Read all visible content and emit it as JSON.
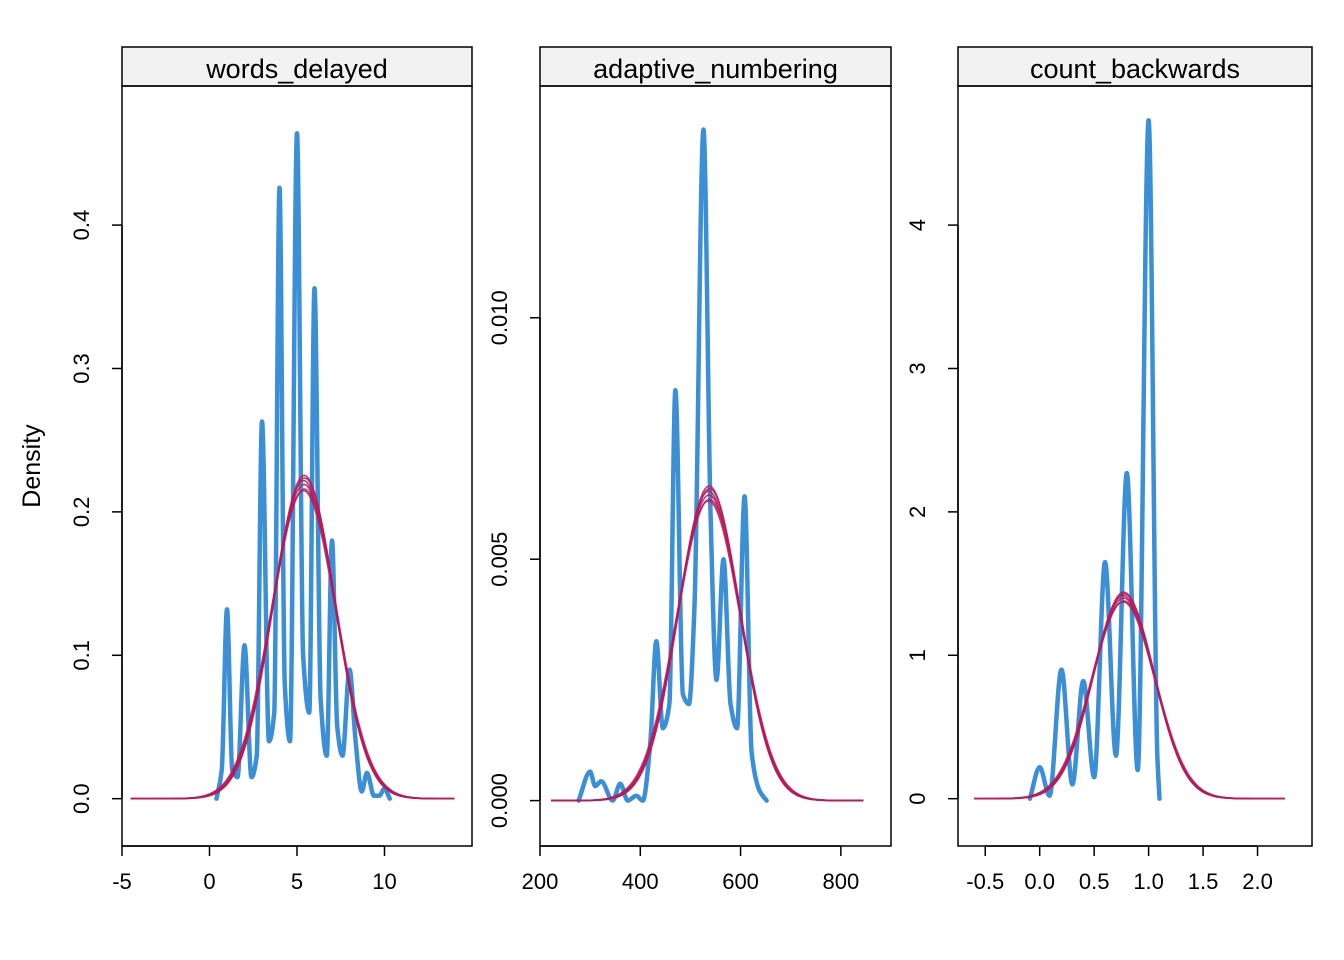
{
  "ylabel": "Density",
  "colors": {
    "observed": "#3a8fd6",
    "simulated": "#b8195a",
    "strip": "#f2f2f2"
  },
  "chart_data": [
    {
      "type": "line",
      "title": "words_delayed",
      "xlabel": "",
      "ylabel": "Density",
      "xlim": [
        -5,
        15
      ],
      "ylim": [
        -0.033,
        0.497
      ],
      "xticks": [
        -5,
        0,
        5,
        10
      ],
      "xtick_labels": [
        "-5",
        "0",
        "5",
        "10"
      ],
      "yticks": [
        0.0,
        0.1,
        0.2,
        0.3,
        0.4
      ],
      "ytick_labels": [
        "0.0",
        "0.1",
        "0.2",
        "0.3",
        "0.4"
      ],
      "grid": false,
      "series": [
        {
          "role": "observed",
          "points": [
            [
              0.4,
              0.0
            ],
            [
              0.7,
              0.02
            ],
            [
              1.0,
              0.132
            ],
            [
              1.3,
              0.02
            ],
            [
              1.6,
              0.015
            ],
            [
              2.0,
              0.107
            ],
            [
              2.4,
              0.015
            ],
            [
              2.7,
              0.03
            ],
            [
              3.0,
              0.263
            ],
            [
              3.4,
              0.04
            ],
            [
              3.7,
              0.06
            ],
            [
              4.0,
              0.426
            ],
            [
              4.3,
              0.08
            ],
            [
              4.6,
              0.04
            ],
            [
              5.0,
              0.464
            ],
            [
              5.35,
              0.1
            ],
            [
              5.7,
              0.06
            ],
            [
              6.0,
              0.356
            ],
            [
              6.35,
              0.07
            ],
            [
              6.7,
              0.03
            ],
            [
              7.0,
              0.18
            ],
            [
              7.3,
              0.05
            ],
            [
              7.6,
              0.03
            ],
            [
              8.0,
              0.09
            ],
            [
              8.35,
              0.04
            ],
            [
              8.7,
              0.005
            ],
            [
              9.0,
              0.018
            ],
            [
              9.4,
              0.002
            ],
            [
              9.7,
              0.002
            ],
            [
              10.0,
              0.007
            ],
            [
              10.3,
              0.0
            ]
          ]
        },
        {
          "role": "simulated",
          "mean": 5.4,
          "sd": 1.82,
          "replicates": 6,
          "x_range": [
            -4.5,
            14
          ]
        }
      ]
    },
    {
      "type": "line",
      "title": "adaptive_numbering",
      "xlabel": "",
      "ylabel": "Density",
      "xlim": [
        200,
        900
      ],
      "ylim": [
        -0.00094,
        0.0148
      ],
      "xticks": [
        200,
        400,
        600,
        800
      ],
      "xtick_labels": [
        "200",
        "400",
        "600",
        "800"
      ],
      "yticks": [
        0.0,
        0.005,
        0.01
      ],
      "ytick_labels": [
        "0.000",
        "0.005",
        "0.010"
      ],
      "grid": false,
      "series": [
        {
          "role": "observed",
          "points": [
            [
              277,
              0.0
            ],
            [
              300,
              0.0006
            ],
            [
              310,
              0.0003
            ],
            [
              322,
              0.0004
            ],
            [
              345,
              0.0
            ],
            [
              360,
              0.00035
            ],
            [
              375,
              0.0
            ],
            [
              392,
              0.0001
            ],
            [
              405,
              0.0
            ],
            [
              420,
              0.0012
            ],
            [
              432,
              0.0033
            ],
            [
              445,
              0.0015
            ],
            [
              458,
              0.002
            ],
            [
              470,
              0.0085
            ],
            [
              485,
              0.0022
            ],
            [
              497,
              0.002
            ],
            [
              508,
              0.004
            ],
            [
              526,
              0.0139
            ],
            [
              540,
              0.006
            ],
            [
              552,
              0.0025
            ],
            [
              566,
              0.005
            ],
            [
              580,
              0.002
            ],
            [
              593,
              0.0015
            ],
            [
              608,
              0.0063
            ],
            [
              622,
              0.001
            ],
            [
              638,
              0.0002
            ],
            [
              652,
              0.0
            ]
          ]
        },
        {
          "role": "simulated",
          "mean": 537,
          "sd": 63,
          "replicates": 6,
          "x_range": [
            222,
            845
          ]
        }
      ]
    },
    {
      "type": "line",
      "title": "count_backwards",
      "xlabel": "",
      "ylabel": "Density",
      "xlim": [
        -0.75,
        2.5
      ],
      "ylim": [
        -0.33,
        4.97
      ],
      "xticks": [
        -0.5,
        0.0,
        0.5,
        1.0,
        1.5,
        2.0
      ],
      "xtick_labels": [
        "-0.5",
        "0.0",
        "0.5",
        "1.0",
        "1.5",
        "2.0"
      ],
      "yticks": [
        0,
        1,
        2,
        3,
        4
      ],
      "ytick_labels": [
        "0",
        "1",
        "2",
        "3",
        "4"
      ],
      "grid": false,
      "series": [
        {
          "role": "observed",
          "points": [
            [
              -0.09,
              0.0
            ],
            [
              0.0,
              0.22
            ],
            [
              0.09,
              0.02
            ],
            [
              0.2,
              0.9
            ],
            [
              0.3,
              0.1
            ],
            [
              0.4,
              0.82
            ],
            [
              0.5,
              0.15
            ],
            [
              0.6,
              1.65
            ],
            [
              0.7,
              0.3
            ],
            [
              0.8,
              2.27
            ],
            [
              0.9,
              0.2
            ],
            [
              1.0,
              4.73
            ],
            [
              1.08,
              0.3
            ],
            [
              1.1,
              0.0
            ]
          ]
        },
        {
          "role": "simulated",
          "mean": 0.77,
          "sd": 0.285,
          "replicates": 6,
          "x_range": [
            -0.6,
            2.25
          ]
        }
      ]
    }
  ]
}
